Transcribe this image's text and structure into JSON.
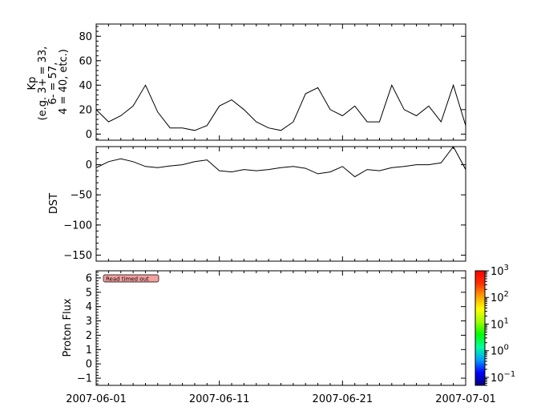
{
  "chart_data": [
    {
      "type": "line",
      "ylabel_lines": [
        "Kp",
        "(e.g. 3+ = 33,",
        "6- = 57,",
        "4 = 40, etc.)"
      ],
      "ylim": [
        -5,
        90
      ],
      "yticks": [
        0,
        20,
        40,
        60,
        80
      ],
      "xlim": [
        "2007-06-01",
        "2007-07-01"
      ],
      "series": [
        {
          "x": [
            "2007-06-01",
            "2007-06-02",
            "2007-06-03",
            "2007-06-04",
            "2007-06-05",
            "2007-06-06",
            "2007-06-07",
            "2007-06-08",
            "2007-06-09",
            "2007-06-10",
            "2007-06-11",
            "2007-06-12",
            "2007-06-13",
            "2007-06-14",
            "2007-06-15",
            "2007-06-16",
            "2007-06-17",
            "2007-06-18",
            "2007-06-19",
            "2007-06-20",
            "2007-06-21",
            "2007-06-22",
            "2007-06-23",
            "2007-06-24",
            "2007-06-25",
            "2007-06-26",
            "2007-06-27",
            "2007-06-28",
            "2007-06-29",
            "2007-06-30",
            "2007-07-01"
          ],
          "y": [
            20,
            10,
            15,
            23,
            40,
            18,
            5,
            5,
            3,
            7,
            23,
            28,
            20,
            10,
            5,
            3,
            10,
            33,
            38,
            20,
            15,
            23,
            10,
            10,
            40,
            20,
            15,
            23,
            10,
            40,
            7
          ]
        }
      ]
    },
    {
      "type": "line",
      "ylabel": "DST",
      "ylim": [
        -160,
        30
      ],
      "yticks": [
        0,
        -50,
        -100,
        -150
      ],
      "xlim": [
        "2007-06-01",
        "2007-07-01"
      ],
      "series": [
        {
          "x": [
            "2007-06-01",
            "2007-06-02",
            "2007-06-03",
            "2007-06-04",
            "2007-06-05",
            "2007-06-06",
            "2007-06-07",
            "2007-06-08",
            "2007-06-09",
            "2007-06-10",
            "2007-06-11",
            "2007-06-12",
            "2007-06-13",
            "2007-06-14",
            "2007-06-15",
            "2007-06-16",
            "2007-06-17",
            "2007-06-18",
            "2007-06-19",
            "2007-06-20",
            "2007-06-21",
            "2007-06-22",
            "2007-06-23",
            "2007-06-24",
            "2007-06-25",
            "2007-06-26",
            "2007-06-27",
            "2007-06-28",
            "2007-06-29",
            "2007-06-30",
            "2007-07-01"
          ],
          "y": [
            -5,
            5,
            10,
            5,
            -3,
            -5,
            -2,
            0,
            5,
            8,
            -10,
            -12,
            -8,
            -10,
            -8,
            -5,
            -3,
            -6,
            -15,
            -12,
            -3,
            -20,
            -8,
            -10,
            -5,
            -3,
            0,
            0,
            3,
            30,
            -8
          ]
        }
      ]
    },
    {
      "type": "heatmap",
      "ylabel": "Proton Flux",
      "ylim": [
        -1.5,
        6.5
      ],
      "yticks": [
        -1,
        0,
        1,
        2,
        3,
        4,
        5,
        6
      ],
      "xlim": [
        "2007-06-01",
        "2007-07-01"
      ],
      "xtick_labels": [
        "2007-06-01",
        "2007-06-11",
        "2007-06-21",
        "2007-07-01"
      ],
      "message": "Read timed out",
      "colorbar": {
        "scale": "log",
        "tick_bases": [
          "10",
          "10",
          "10",
          "10",
          "10"
        ],
        "tick_exponents": [
          "3",
          "2",
          "1",
          "0",
          "-1"
        ],
        "tick_values": [
          1000,
          100,
          10,
          1,
          0.1
        ],
        "range": [
          0.05,
          1000
        ],
        "colors": [
          "#00007f",
          "#0000ff",
          "#00a0ff",
          "#00ffa0",
          "#00ff00",
          "#a0ff00",
          "#ffff00",
          "#ffa000",
          "#ff3000",
          "#ff0000"
        ]
      }
    }
  ],
  "colors": {
    "line": "#000000",
    "badge_fill": "#f4a0a0",
    "frame": "#000000"
  }
}
